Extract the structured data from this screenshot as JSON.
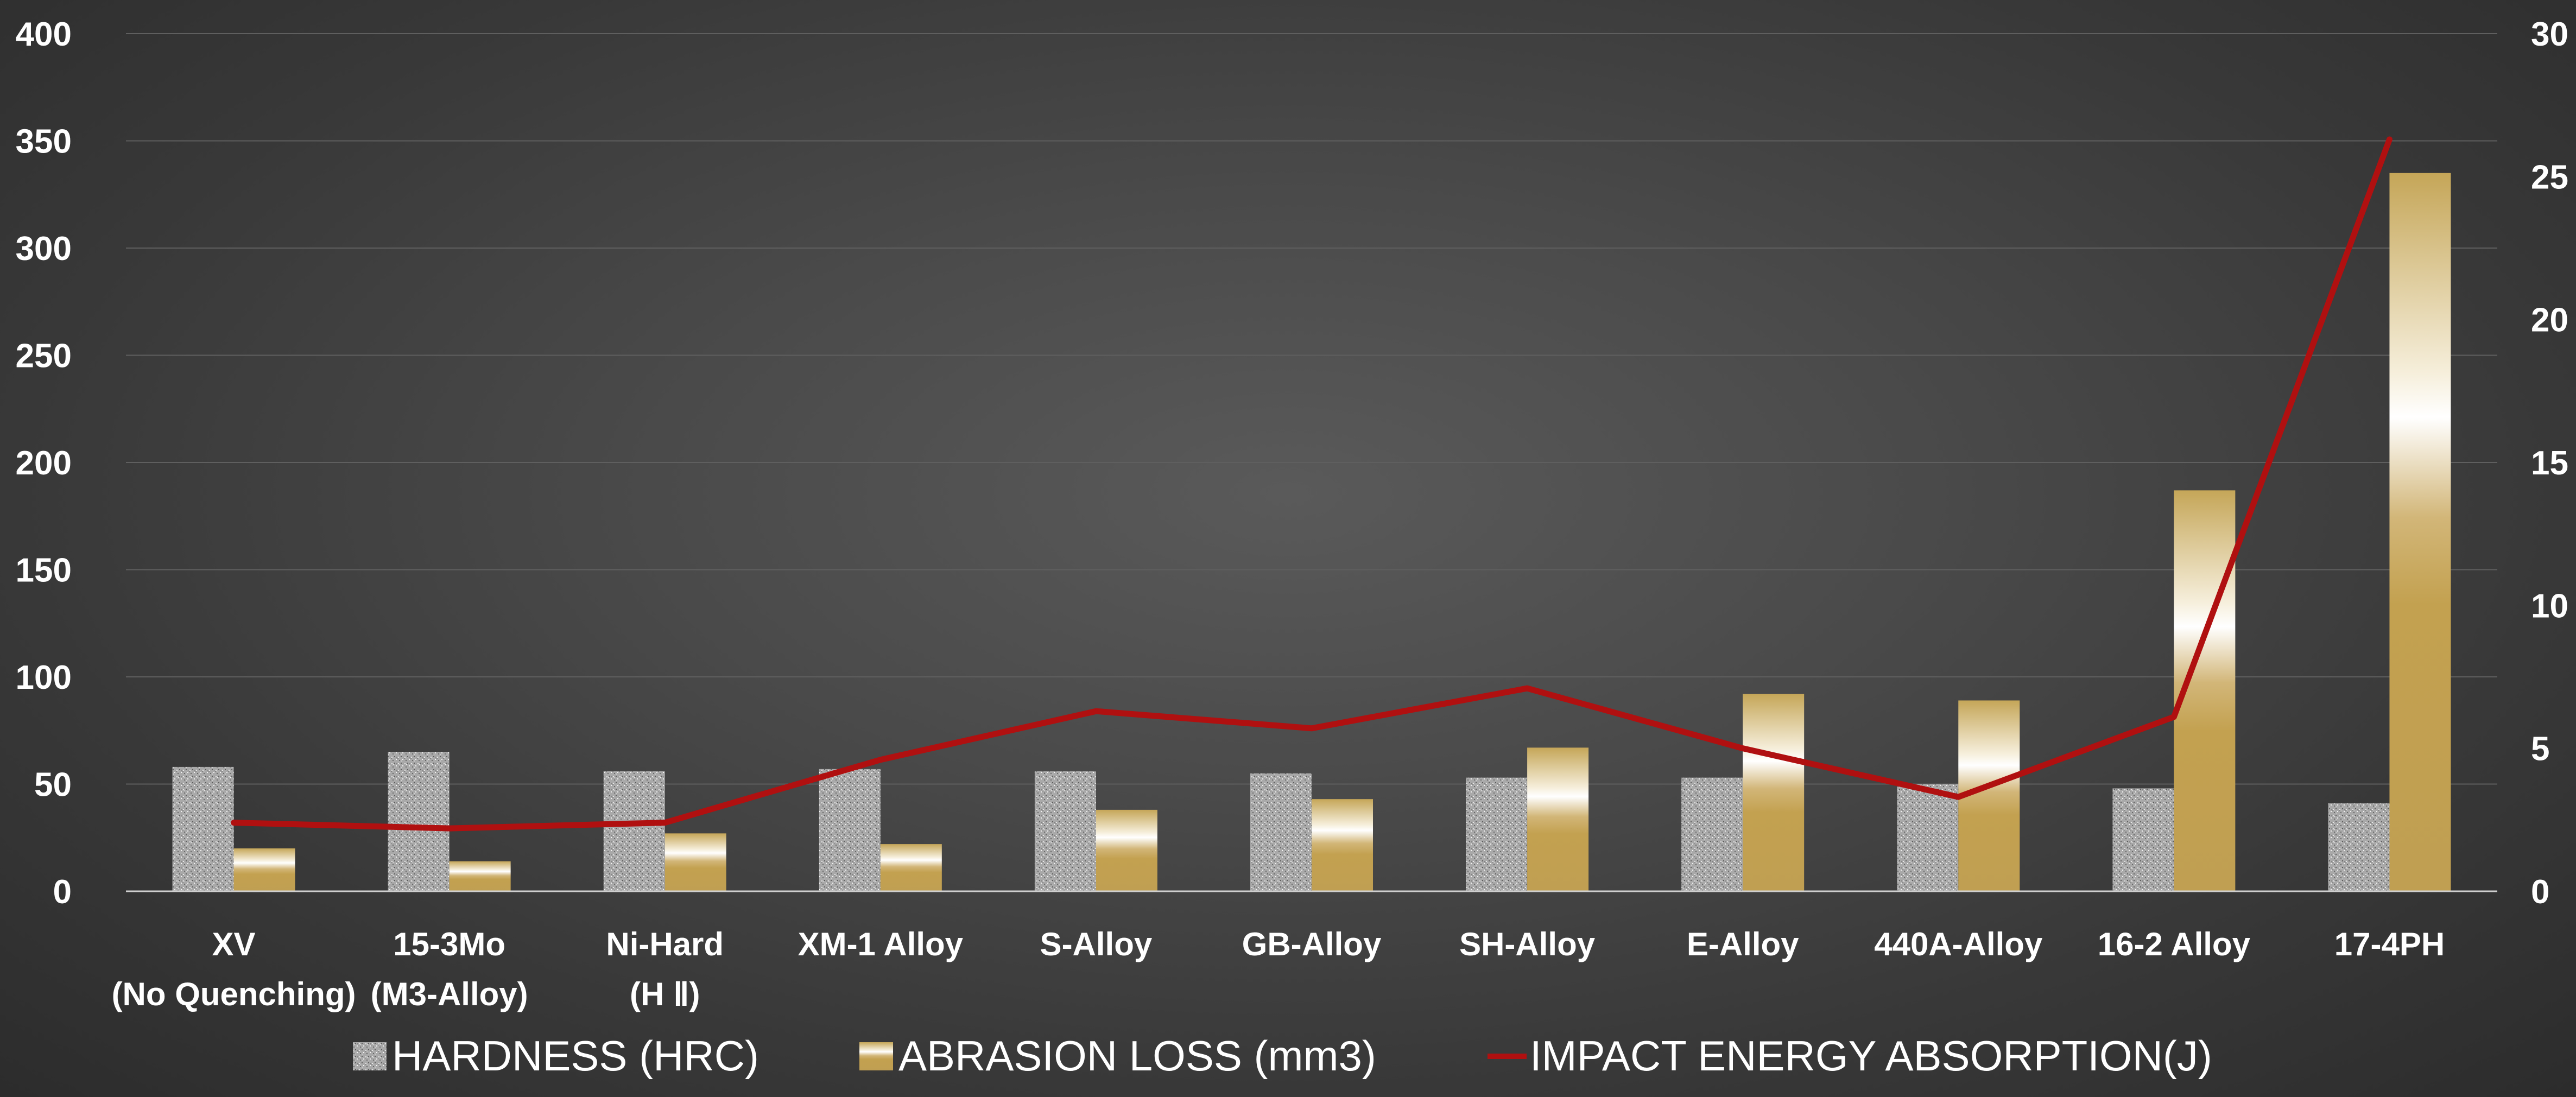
{
  "chart_data": {
    "type": "bar",
    "categories": [
      [
        "XV",
        "(No Quenching)"
      ],
      [
        "15-3Mo",
        "(M3-Alloy)"
      ],
      [
        "Ni-Hard",
        "(H Ⅱ)"
      ],
      [
        "XM-1 Alloy"
      ],
      [
        "S-Alloy"
      ],
      [
        "GB-Alloy"
      ],
      [
        "SH-Alloy"
      ],
      [
        "E-Alloy"
      ],
      [
        "440A-Alloy"
      ],
      [
        "16-2 Alloy"
      ],
      [
        "17-4PH"
      ]
    ],
    "series": [
      {
        "name": "HARDNESS (HRC)",
        "type": "bar",
        "axis": "left",
        "color": "#b8b8b8",
        "values": [
          58,
          65,
          56,
          57,
          56,
          55,
          53,
          53,
          50,
          48,
          41
        ]
      },
      {
        "name": "ABRASION LOSS (mm3)",
        "type": "bar",
        "axis": "left",
        "color": "#c8aa5a",
        "values": [
          20,
          14,
          27,
          22,
          38,
          43,
          67,
          92,
          89,
          187,
          335
        ]
      },
      {
        "name": "IMPACT ENERGY ABSORPTION(J)",
        "type": "line",
        "axis": "right",
        "color": "#b01010",
        "values": [
          2.4,
          2.2,
          2.4,
          4.6,
          6.3,
          5.7,
          7.1,
          5.0,
          3.3,
          6.1,
          26.3
        ]
      }
    ],
    "y_left": {
      "ylim": [
        0,
        400
      ],
      "ticks": [
        0,
        50,
        100,
        150,
        200,
        250,
        300,
        350,
        400
      ]
    },
    "y_right": {
      "ylim": [
        0,
        30
      ],
      "ticks": [
        0,
        5,
        10,
        15,
        20,
        25,
        30
      ]
    },
    "grid": true,
    "legend": "bottom"
  }
}
